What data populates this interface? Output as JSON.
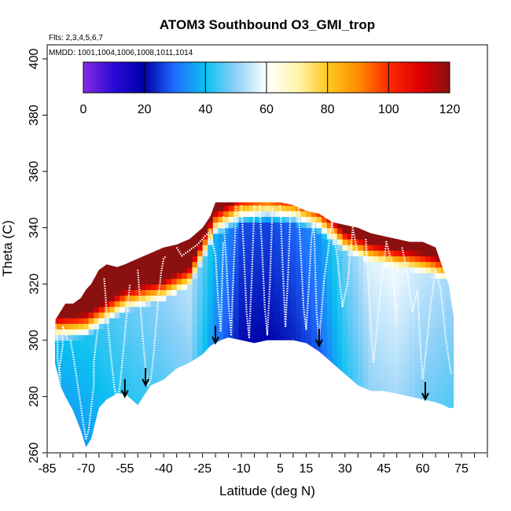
{
  "chart_data": {
    "type": "heatmap",
    "title": "ATOM3 Southbound O3_GMI_trop",
    "annotations": {
      "flights": "Flts: 2,3,4,5,6,7",
      "dates": "MMDD: 1001,1004,1006,1008,1011,1014"
    },
    "xlabel": "Latitude (deg N)",
    "ylabel": "Theta (C)",
    "xlim": [
      -85,
      85
    ],
    "ylim": [
      260,
      405
    ],
    "x_ticks": [
      -85,
      -70,
      -55,
      -40,
      -25,
      -10,
      5,
      15,
      30,
      45,
      60,
      75
    ],
    "x_minor_step": 5,
    "y_ticks": [
      260,
      280,
      300,
      320,
      340,
      360,
      380,
      400
    ],
    "colorbar": {
      "min": 0,
      "max": 120,
      "ticks": [
        0,
        20,
        40,
        60,
        80,
        100,
        120
      ],
      "stops": [
        {
          "v": 0,
          "c": "#8a2be2"
        },
        {
          "v": 10,
          "c": "#2a0ad8"
        },
        {
          "v": 20,
          "c": "#0000a8"
        },
        {
          "v": 30,
          "c": "#1e6eff"
        },
        {
          "v": 40,
          "c": "#0cc0f0"
        },
        {
          "v": 50,
          "c": "#8ed0f8"
        },
        {
          "v": 60,
          "c": "#ffffff"
        },
        {
          "v": 70,
          "c": "#fff6b0"
        },
        {
          "v": 80,
          "c": "#ffc820"
        },
        {
          "v": 90,
          "c": "#ff8c00"
        },
        {
          "v": 100,
          "c": "#ff2a00"
        },
        {
          "v": 110,
          "c": "#e00000"
        },
        {
          "v": 120,
          "c": "#8b1010"
        }
      ]
    },
    "envelope": {
      "lat": [
        -82,
        -80,
        -78,
        -75,
        -72,
        -70,
        -68,
        -65,
        -62,
        -58,
        -55,
        -50,
        -45,
        -40,
        -35,
        -30,
        -25,
        -22,
        -20,
        -18,
        -15,
        -10,
        -5,
        0,
        5,
        10,
        15,
        20,
        25,
        30,
        35,
        40,
        45,
        50,
        55,
        60,
        65,
        68,
        70,
        72
      ],
      "theta_top": [
        307,
        310,
        313,
        313,
        315,
        318,
        320,
        325,
        327,
        326,
        327,
        329,
        331,
        333,
        334,
        336,
        340,
        344,
        349,
        349,
        349,
        349,
        349,
        349,
        349,
        348,
        346,
        345,
        342,
        341,
        340,
        338,
        337,
        336,
        335,
        335,
        333,
        325,
        320,
        308
      ],
      "theta_bottom": [
        292,
        284,
        280,
        275,
        268,
        262,
        265,
        276,
        279,
        281,
        281,
        277,
        284,
        286,
        290,
        292,
        295,
        298,
        299,
        300,
        301,
        300,
        299,
        300,
        300,
        300,
        299,
        296,
        292,
        288,
        284,
        282,
        282,
        281,
        280,
        279,
        278,
        277,
        276,
        276
      ]
    },
    "ozone_field": {
      "tropopause_lat": [
        -85,
        -70,
        -55,
        -40,
        -30,
        -20,
        -10,
        0,
        10,
        20,
        30,
        40,
        50,
        60,
        70,
        85
      ],
      "tropopause_theta": [
        304,
        306,
        315,
        319,
        324,
        342,
        346,
        347,
        346,
        343,
        336,
        333,
        331,
        329,
        326,
        320
      ],
      "trop_values": [
        36,
        38,
        42,
        45,
        48,
        30,
        18,
        17,
        20,
        26,
        40,
        50,
        52,
        48,
        46,
        46
      ],
      "strat_gradient": 9
    },
    "flight_tracks": [
      {
        "lat": [
          -82,
          -81,
          -81,
          -80,
          -80,
          -80,
          -81,
          -81,
          -80,
          -79,
          -79,
          -77
        ],
        "theta": [
          307,
          300,
          293,
          288,
          285,
          282,
          279,
          285,
          292,
          298,
          305,
          300
        ]
      },
      {
        "lat": [
          -76,
          -75,
          -74,
          -73,
          -72,
          -71,
          -70,
          -69,
          -68,
          -67,
          -67,
          -66,
          -65
        ],
        "theta": [
          300,
          295,
          289,
          283,
          277,
          270,
          265,
          268,
          276,
          284,
          292,
          300,
          308
        ]
      },
      {
        "lat": [
          -63,
          -62,
          -61,
          -60,
          -59,
          -58,
          -57,
          -56,
          -55,
          -54,
          -53
        ],
        "theta": [
          322,
          310,
          300,
          291,
          283,
          279,
          283,
          292,
          302,
          312,
          320
        ]
      },
      {
        "lat": [
          -50,
          -49,
          -48,
          -47,
          -46,
          -45,
          -44,
          -43,
          -42,
          -41,
          -40,
          -39
        ],
        "theta": [
          325,
          312,
          300,
          290,
          284,
          286,
          294,
          305,
          315,
          324,
          329,
          330
        ]
      },
      {
        "lat": [
          -35,
          -33,
          -30,
          -27,
          -24,
          -22,
          -20,
          -19,
          -18,
          -17
        ],
        "theta": [
          333,
          330,
          332,
          334,
          337,
          339,
          330,
          315,
          303,
          335
        ]
      },
      {
        "lat": [
          -17,
          -16,
          -15,
          -14,
          -13,
          -12
        ],
        "theta": [
          344,
          330,
          314,
          302,
          325,
          348
        ]
      },
      {
        "lat": [
          -10,
          -9,
          -8,
          -7,
          -6,
          -5
        ],
        "theta": [
          348,
          330,
          310,
          301,
          322,
          348
        ]
      },
      {
        "lat": [
          -3,
          -2,
          -1,
          0,
          1,
          2
        ],
        "theta": [
          348,
          332,
          312,
          302,
          320,
          347
        ]
      },
      {
        "lat": [
          5,
          6,
          7,
          8,
          9
        ],
        "theta": [
          348,
          325,
          305,
          323,
          346
        ]
      },
      {
        "lat": [
          12,
          13,
          14,
          15,
          16,
          17,
          18,
          19,
          20
        ],
        "theta": [
          347,
          330,
          312,
          304,
          318,
          336,
          342,
          310,
          300
        ]
      },
      {
        "lat": [
          20,
          22,
          25,
          27,
          29,
          31,
          33,
          35
        ],
        "theta": [
          300,
          322,
          342,
          330,
          312,
          320,
          340,
          330
        ]
      },
      {
        "lat": [
          38,
          39,
          40,
          41,
          42,
          44,
          46,
          48,
          50
        ],
        "theta": [
          336,
          320,
          305,
          292,
          301,
          320,
          335,
          328,
          306
        ]
      },
      {
        "lat": [
          52,
          54,
          56,
          58,
          59,
          60,
          61,
          63,
          65,
          67,
          69,
          71
        ],
        "theta": [
          333,
          325,
          310,
          318,
          300,
          286,
          294,
          312,
          325,
          318,
          300,
          288
        ]
      }
    ],
    "arrows": [
      {
        "lat": -55,
        "theta_tip": 280
      },
      {
        "lat": -47,
        "theta_tip": 284
      },
      {
        "lat": -20,
        "theta_tip": 299
      },
      {
        "lat": 20,
        "theta_tip": 298
      },
      {
        "lat": 61,
        "theta_tip": 279
      }
    ]
  }
}
